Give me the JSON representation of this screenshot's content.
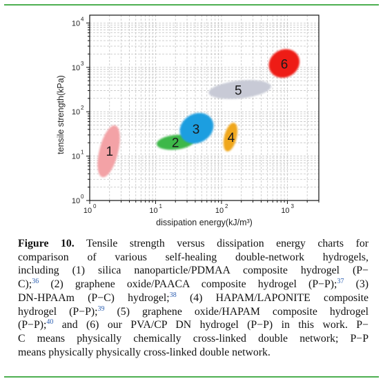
{
  "chart_data": {
    "type": "scatter",
    "x_scale": "log",
    "y_scale": "log",
    "xlabel": "dissipation energy(kJ/m³)",
    "ylabel": "tensile strength(kPa)",
    "xlim": [
      1,
      3000
    ],
    "ylim": [
      1,
      15000
    ],
    "x_ticks": [
      {
        "value": 1,
        "base": "10",
        "exp": "0"
      },
      {
        "value": 10,
        "base": "10",
        "exp": "1"
      },
      {
        "value": 100,
        "base": "10",
        "exp": "2"
      },
      {
        "value": 1000,
        "base": "10",
        "exp": "3"
      }
    ],
    "y_ticks": [
      {
        "value": 1,
        "base": "10",
        "exp": "0"
      },
      {
        "value": 10,
        "base": "10",
        "exp": "1"
      },
      {
        "value": 100,
        "base": "10",
        "exp": "2"
      },
      {
        "value": 1000,
        "base": "10",
        "exp": "3"
      },
      {
        "value": 10000,
        "base": "10",
        "exp": "4"
      }
    ],
    "grid": true,
    "regions": [
      {
        "label": "1",
        "x": [
          1.4,
          2.7
        ],
        "y": [
          3,
          55
        ],
        "center": [
          2.0,
          13
        ],
        "color": "#f3a2a6"
      },
      {
        "label": "2",
        "x": [
          10,
          40
        ],
        "y": [
          14,
          30
        ],
        "center": [
          20,
          20.5
        ],
        "color": "#3cb84a"
      },
      {
        "label": "3",
        "x": [
          22,
          80
        ],
        "y": [
          20,
          90
        ],
        "center": [
          41,
          41
        ],
        "color": "#1a9ee0"
      },
      {
        "label": "4",
        "x": [
          110,
          170
        ],
        "y": [
          12,
          60
        ],
        "center": [
          140,
          27
        ],
        "color": "#f0a71f"
      },
      {
        "label": "5",
        "x": [
          60,
          600
        ],
        "y": [
          200,
          500
        ],
        "center": [
          180,
          310
        ],
        "color": "#c8cad6"
      },
      {
        "label": "6",
        "x": [
          500,
          1600
        ],
        "y": [
          600,
          2500
        ],
        "center": [
          900,
          1200
        ],
        "color": "#ee1c16"
      }
    ]
  },
  "caption": {
    "figure_label": "Figure 10.",
    "lines": [
      {
        "parts": [
          {
            "t": "fig"
          },
          {
            "t": "text",
            "v": " Tensile strength versus dissipation energy charts for"
          }
        ],
        "justify": true
      },
      {
        "parts": [
          {
            "t": "text",
            "v": "comparison of various self-healing double-network hydrogels,"
          }
        ],
        "justify": true
      },
      {
        "parts": [
          {
            "t": "text",
            "v": "including (1) silica nanoparticle/PDMAA composite hydrogel (P−"
          }
        ],
        "justify": true
      },
      {
        "parts": [
          {
            "t": "text",
            "v": "C);"
          },
          {
            "t": "ref",
            "v": "36"
          },
          {
            "t": "text",
            "v": " (2) graphene oxide/PAACA composite hydrogel (P−P);"
          },
          {
            "t": "ref",
            "v": "37"
          },
          {
            "t": "text",
            "v": " (3)"
          }
        ],
        "justify": true
      },
      {
        "parts": [
          {
            "t": "text",
            "v": "DN-HPAAm (P−C) hydrogel;"
          },
          {
            "t": "ref",
            "v": "38"
          },
          {
            "t": "text",
            "v": " (4) HAPAM/LAPONITE composite"
          }
        ],
        "justify": true
      },
      {
        "parts": [
          {
            "t": "text",
            "v": "hydrogel (P−P);"
          },
          {
            "t": "ref",
            "v": "39"
          },
          {
            "t": "text",
            "v": " (5) graphene oxide/HAPAM composite hydrogel"
          }
        ],
        "justify": true
      },
      {
        "parts": [
          {
            "t": "text",
            "v": "(P−P);"
          },
          {
            "t": "ref",
            "v": "40"
          },
          {
            "t": "text",
            "v": " and (6) our PVA/CP DN hydrogel (P−P) in this work. P−"
          }
        ],
        "justify": true
      },
      {
        "parts": [
          {
            "t": "text",
            "v": "C means physically chemically cross-linked double network; P−P"
          }
        ],
        "justify": true
      },
      {
        "parts": [
          {
            "t": "text",
            "v": "means physically physically cross-linked double network."
          }
        ],
        "justify": false
      }
    ]
  },
  "colors": {
    "rule": "#4caf50",
    "ref_link": "#2a5db0",
    "grid": "#c4c4c4"
  }
}
